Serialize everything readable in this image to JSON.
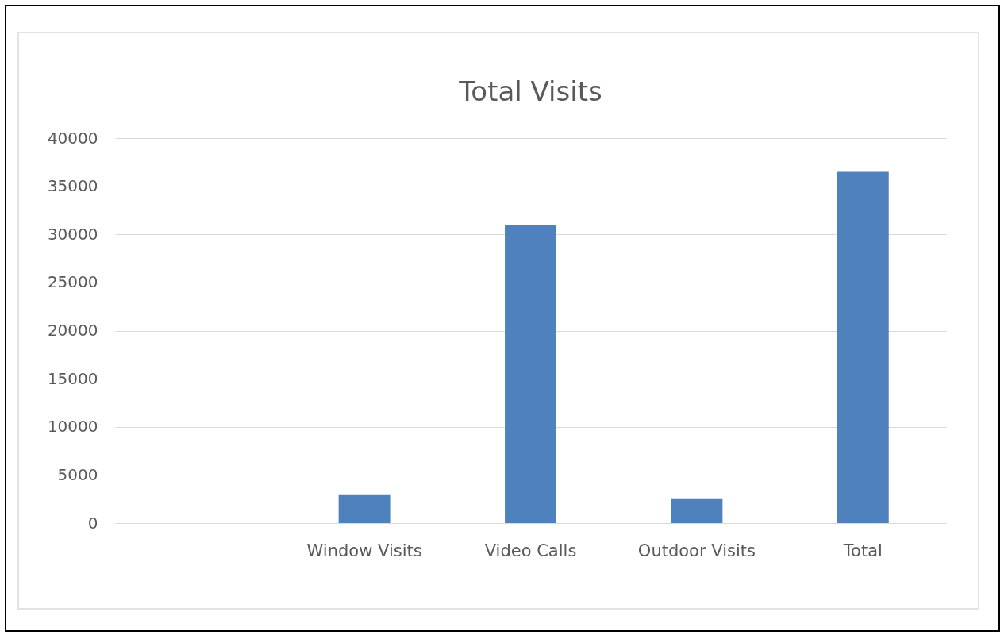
{
  "chart_data": {
    "type": "bar",
    "title": "Total Visits",
    "categories": [
      null,
      "Window Visits",
      "Video Calls",
      "Outdoor Visits",
      "Total"
    ],
    "values": [
      null,
      3000,
      31000,
      2500,
      36500
    ],
    "color": "#4f81bd",
    "ylim": [
      0,
      40000
    ],
    "yticks": [
      0,
      5000,
      10000,
      15000,
      20000,
      25000,
      30000,
      35000,
      40000
    ],
    "grid": "y"
  }
}
